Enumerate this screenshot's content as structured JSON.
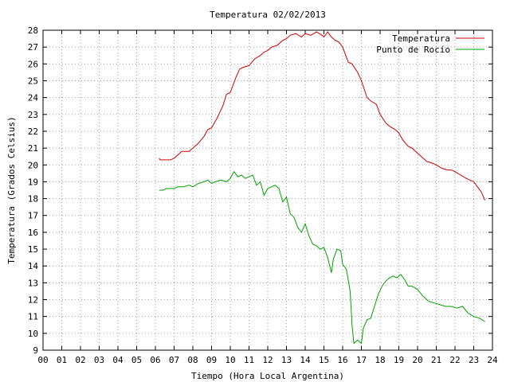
{
  "chart_data": {
    "type": "line",
    "title": "Temperatura 02/02/2013",
    "xlabel": "Tiempo (Hora Local Argentina)",
    "ylabel": "Temperatura (Grados Celsius)",
    "xlim": [
      0,
      24
    ],
    "ylim": [
      9,
      28
    ],
    "x_ticks": [
      0,
      1,
      2,
      3,
      4,
      5,
      6,
      7,
      8,
      9,
      10,
      11,
      12,
      13,
      14,
      15,
      16,
      17,
      18,
      19,
      20,
      21,
      22,
      23,
      24
    ],
    "x_tick_labels": [
      "00",
      "01",
      "02",
      "03",
      "04",
      "05",
      "06",
      "07",
      "08",
      "09",
      "10",
      "11",
      "12",
      "13",
      "14",
      "15",
      "16",
      "17",
      "18",
      "19",
      "20",
      "21",
      "22",
      "23",
      "24"
    ],
    "y_ticks": [
      9,
      10,
      11,
      12,
      13,
      14,
      15,
      16,
      17,
      18,
      19,
      20,
      21,
      22,
      23,
      24,
      25,
      26,
      27,
      28
    ],
    "y_tick_labels": [
      "9",
      "10",
      "11",
      "12",
      "13",
      "14",
      "15",
      "16",
      "17",
      "18",
      "19",
      "20",
      "21",
      "22",
      "23",
      "24",
      "25",
      "26",
      "27",
      "28"
    ],
    "grid": true,
    "legend_position": "top-right",
    "series": [
      {
        "name": "Temperatura",
        "color": "#cc0000",
        "x": [
          6.2,
          6.25,
          6.5,
          6.8,
          7.0,
          7.2,
          7.4,
          7.8,
          8.0,
          8.3,
          8.6,
          8.8,
          9.0,
          9.3,
          9.6,
          9.8,
          10.0,
          10.3,
          10.5,
          10.7,
          11.0,
          11.3,
          11.6,
          11.8,
          12.0,
          12.2,
          12.5,
          12.8,
          13.0,
          13.2,
          13.5,
          13.8,
          14.0,
          14.3,
          14.6,
          14.9,
          15.0,
          15.2,
          15.4,
          15.6,
          15.8,
          16.0,
          16.3,
          16.5,
          16.8,
          17.0,
          17.3,
          17.5,
          17.8,
          18.0,
          18.3,
          18.5,
          18.8,
          19.0,
          19.2,
          19.5,
          19.7,
          20.0,
          20.3,
          20.5,
          20.8,
          21.0,
          21.3,
          21.6,
          21.8,
          22.0,
          22.3,
          22.6,
          22.8,
          23.0,
          23.2,
          23.4,
          23.6
        ],
        "y": [
          20.4,
          20.3,
          20.3,
          20.3,
          20.4,
          20.6,
          20.8,
          20.8,
          21.0,
          21.3,
          21.7,
          22.1,
          22.2,
          22.8,
          23.5,
          24.2,
          24.3,
          25.2,
          25.7,
          25.8,
          25.9,
          26.3,
          26.5,
          26.7,
          26.8,
          27.0,
          27.1,
          27.4,
          27.5,
          27.7,
          27.8,
          27.6,
          27.8,
          27.7,
          27.9,
          27.7,
          27.6,
          27.9,
          27.6,
          27.4,
          27.3,
          27.0,
          26.1,
          26.0,
          25.5,
          25.0,
          24.0,
          23.8,
          23.6,
          23.0,
          22.5,
          22.3,
          22.1,
          21.9,
          21.5,
          21.1,
          21.0,
          20.7,
          20.4,
          20.2,
          20.1,
          20.0,
          19.8,
          19.7,
          19.7,
          19.6,
          19.4,
          19.2,
          19.1,
          19.0,
          18.7,
          18.4,
          17.9
        ]
      },
      {
        "name": "Punto de Rocío",
        "color": "#00a000",
        "x": [
          6.2,
          6.4,
          6.6,
          6.8,
          7.0,
          7.2,
          7.5,
          7.8,
          8.0,
          8.3,
          8.6,
          8.8,
          9.0,
          9.2,
          9.5,
          9.8,
          10.0,
          10.2,
          10.4,
          10.6,
          10.8,
          11.0,
          11.2,
          11.4,
          11.6,
          11.8,
          12.0,
          12.2,
          12.4,
          12.6,
          12.8,
          13.0,
          13.2,
          13.4,
          13.6,
          13.8,
          14.0,
          14.2,
          14.4,
          14.6,
          14.8,
          15.0,
          15.2,
          15.4,
          15.5,
          15.7,
          15.9,
          16.0,
          16.2,
          16.4,
          16.5,
          16.6,
          16.7,
          16.8,
          17.0,
          17.1,
          17.3,
          17.5,
          17.7,
          17.9,
          18.1,
          18.3,
          18.5,
          18.7,
          18.9,
          19.1,
          19.3,
          19.5,
          19.7,
          20.0,
          20.3,
          20.6,
          20.9,
          21.2,
          21.5,
          21.8,
          22.1,
          22.4,
          22.7,
          23.0,
          23.3,
          23.6
        ],
        "y": [
          18.5,
          18.5,
          18.6,
          18.6,
          18.6,
          18.7,
          18.7,
          18.8,
          18.7,
          18.9,
          19.0,
          19.1,
          18.9,
          19.0,
          19.1,
          19.0,
          19.2,
          19.6,
          19.3,
          19.4,
          19.2,
          19.3,
          19.4,
          18.8,
          19.0,
          18.2,
          18.6,
          18.7,
          18.8,
          18.6,
          17.8,
          18.1,
          17.1,
          16.9,
          16.3,
          16.0,
          16.5,
          15.8,
          15.3,
          15.2,
          15.0,
          15.1,
          14.5,
          13.6,
          14.4,
          15.0,
          14.9,
          14.1,
          13.8,
          12.5,
          10.5,
          9.4,
          9.5,
          9.6,
          9.4,
          10.3,
          10.8,
          10.9,
          11.6,
          12.3,
          12.8,
          13.1,
          13.3,
          13.4,
          13.3,
          13.5,
          13.2,
          12.8,
          12.8,
          12.6,
          12.2,
          11.9,
          11.8,
          11.7,
          11.6,
          11.6,
          11.5,
          11.6,
          11.2,
          11.0,
          10.9,
          10.7
        ]
      }
    ]
  }
}
